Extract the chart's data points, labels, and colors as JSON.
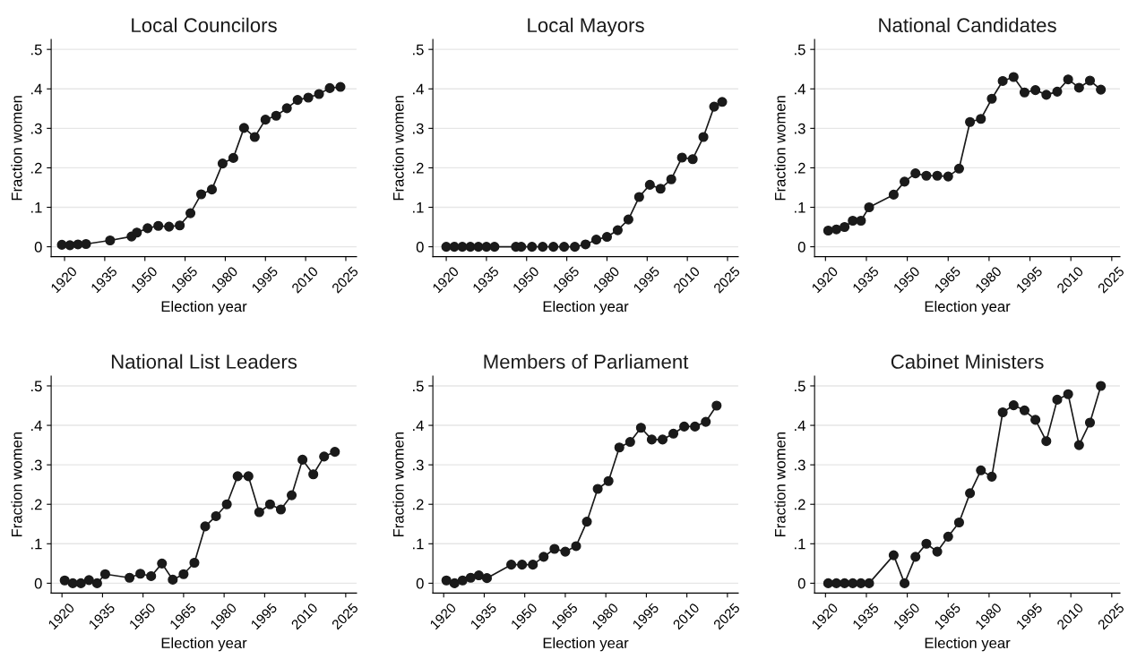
{
  "chart_data": [
    {
      "type": "line",
      "title": "Local Councilors",
      "xlabel": "Election year",
      "ylabel": "Fraction women",
      "marker": "circle",
      "line_style": "solid",
      "grid": "y",
      "xlim": [
        1915,
        2029
      ],
      "ylim": [
        -0.025,
        0.525
      ],
      "xticks": [
        1920,
        1935,
        1950,
        1965,
        1980,
        1995,
        2010,
        2025
      ],
      "yticks": [
        {
          "value": 0,
          "label": "0"
        },
        {
          "value": 0.1,
          "label": ".1"
        },
        {
          "value": 0.2,
          "label": ".2"
        },
        {
          "value": 0.3,
          "label": ".3"
        },
        {
          "value": 0.4,
          "label": ".4"
        },
        {
          "value": 0.5,
          "label": ".5"
        }
      ],
      "series": [
        {
          "color": "#1a1a1a",
          "x": [
            1919,
            1922,
            1925,
            1928,
            1937,
            1945,
            1947,
            1951,
            1955,
            1959,
            1963,
            1967,
            1971,
            1975,
            1979,
            1983,
            1987,
            1991,
            1995,
            1999,
            2003,
            2007,
            2011,
            2015,
            2019,
            2023
          ],
          "values": [
            0.005,
            0.004,
            0.006,
            0.007,
            0.016,
            0.026,
            0.036,
            0.047,
            0.053,
            0.051,
            0.054,
            0.085,
            0.133,
            0.145,
            0.211,
            0.225,
            0.301,
            0.278,
            0.322,
            0.332,
            0.351,
            0.372,
            0.378,
            0.387,
            0.402,
            0.405
          ]
        }
      ]
    },
    {
      "type": "line",
      "title": "Local Mayors",
      "xlabel": "Election year",
      "ylabel": "Fraction women",
      "marker": "circle",
      "line_style": "solid",
      "grid": "y",
      "xlim": [
        1915,
        2029
      ],
      "ylim": [
        -0.025,
        0.525
      ],
      "xticks": [
        1920,
        1935,
        1950,
        1965,
        1980,
        1995,
        2010,
        2025
      ],
      "yticks": [
        {
          "value": 0,
          "label": "0"
        },
        {
          "value": 0.1,
          "label": ".1"
        },
        {
          "value": 0.2,
          "label": ".2"
        },
        {
          "value": 0.3,
          "label": ".3"
        },
        {
          "value": 0.4,
          "label": ".4"
        },
        {
          "value": 0.5,
          "label": ".5"
        }
      ],
      "series": [
        {
          "color": "#1a1a1a",
          "x": [
            1920,
            1923,
            1926,
            1929,
            1932,
            1935,
            1938,
            1946,
            1948,
            1952,
            1956,
            1960,
            1964,
            1968,
            1972,
            1976,
            1980,
            1984,
            1988,
            1992,
            1996,
            2000,
            2004,
            2008,
            2012,
            2016,
            2020,
            2023
          ],
          "values": [
            0,
            0,
            0,
            0,
            0,
            0,
            0,
            0,
            0,
            0,
            0,
            0,
            0,
            0,
            0.006,
            0.018,
            0.025,
            0.042,
            0.069,
            0.126,
            0.157,
            0.147,
            0.171,
            0.226,
            0.222,
            0.278,
            0.355,
            0.367
          ]
        }
      ]
    },
    {
      "type": "line",
      "title": "National Candidates",
      "xlabel": "Election year",
      "ylabel": "Fraction women",
      "marker": "circle",
      "line_style": "solid",
      "grid": "y",
      "xlim": [
        1916,
        2028
      ],
      "ylim": [
        -0.025,
        0.525
      ],
      "xticks": [
        1920,
        1935,
        1950,
        1965,
        1980,
        1995,
        2010,
        2025
      ],
      "yticks": [
        {
          "value": 0,
          "label": "0"
        },
        {
          "value": 0.1,
          "label": ".1"
        },
        {
          "value": 0.2,
          "label": ".2"
        },
        {
          "value": 0.3,
          "label": ".3"
        },
        {
          "value": 0.4,
          "label": ".4"
        },
        {
          "value": 0.5,
          "label": ".5"
        }
      ],
      "series": [
        {
          "color": "#1a1a1a",
          "x": [
            1921,
            1924,
            1927,
            1930,
            1933,
            1936,
            1945,
            1949,
            1953,
            1957,
            1961,
            1965,
            1969,
            1973,
            1977,
            1981,
            1985,
            1989,
            1993,
            1997,
            2001,
            2005,
            2009,
            2013,
            2017,
            2021
          ],
          "values": [
            0.041,
            0.044,
            0.05,
            0.066,
            0.066,
            0.1,
            0.132,
            0.165,
            0.186,
            0.18,
            0.18,
            0.178,
            0.198,
            0.316,
            0.324,
            0.375,
            0.42,
            0.43,
            0.391,
            0.397,
            0.385,
            0.393,
            0.424,
            0.403,
            0.421,
            0.398
          ]
        }
      ]
    },
    {
      "type": "line",
      "title": "National List Leaders",
      "xlabel": "Election year",
      "ylabel": "Fraction women",
      "marker": "circle",
      "line_style": "solid",
      "grid": "y",
      "xlim": [
        1916,
        2029
      ],
      "ylim": [
        -0.025,
        0.525
      ],
      "xticks": [
        1920,
        1935,
        1950,
        1965,
        1980,
        1995,
        2010,
        2025
      ],
      "yticks": [
        {
          "value": 0,
          "label": "0"
        },
        {
          "value": 0.1,
          "label": ".1"
        },
        {
          "value": 0.2,
          "label": ".2"
        },
        {
          "value": 0.3,
          "label": ".3"
        },
        {
          "value": 0.4,
          "label": ".4"
        },
        {
          "value": 0.5,
          "label": ".5"
        }
      ],
      "series": [
        {
          "color": "#1a1a1a",
          "x": [
            1921,
            1924,
            1927,
            1930,
            1933,
            1936,
            1945,
            1949,
            1953,
            1957,
            1961,
            1965,
            1969,
            1973,
            1977,
            1981,
            1985,
            1989,
            1993,
            1997,
            2001,
            2005,
            2009,
            2013,
            2017,
            2021
          ],
          "values": [
            0.007,
            0,
            0,
            0.008,
            0,
            0.023,
            0.014,
            0.024,
            0.018,
            0.05,
            0.009,
            0.023,
            0.052,
            0.144,
            0.17,
            0.2,
            0.271,
            0.271,
            0.18,
            0.2,
            0.187,
            0.223,
            0.313,
            0.276,
            0.321,
            0.333
          ]
        }
      ]
    },
    {
      "type": "line",
      "title": "Members of Parliament",
      "xlabel": "Election year",
      "ylabel": "Fraction women",
      "marker": "circle",
      "line_style": "solid",
      "grid": "y",
      "xlim": [
        1916,
        2029
      ],
      "ylim": [
        -0.025,
        0.525
      ],
      "xticks": [
        1920,
        1935,
        1950,
        1965,
        1980,
        1995,
        2010,
        2025
      ],
      "yticks": [
        {
          "value": 0,
          "label": "0"
        },
        {
          "value": 0.1,
          "label": ".1"
        },
        {
          "value": 0.2,
          "label": ".2"
        },
        {
          "value": 0.3,
          "label": ".3"
        },
        {
          "value": 0.4,
          "label": ".4"
        },
        {
          "value": 0.5,
          "label": ".5"
        }
      ],
      "series": [
        {
          "color": "#1a1a1a",
          "x": [
            1921,
            1924,
            1927,
            1930,
            1933,
            1936,
            1945,
            1949,
            1953,
            1957,
            1961,
            1965,
            1969,
            1973,
            1977,
            1981,
            1985,
            1989,
            1993,
            1997,
            2001,
            2005,
            2009,
            2013,
            2017,
            2021
          ],
          "values": [
            0.007,
            0,
            0.007,
            0.014,
            0.02,
            0.013,
            0.047,
            0.047,
            0.047,
            0.067,
            0.087,
            0.08,
            0.094,
            0.156,
            0.239,
            0.259,
            0.344,
            0.358,
            0.394,
            0.364,
            0.364,
            0.379,
            0.397,
            0.397,
            0.409,
            0.45
          ]
        }
      ]
    },
    {
      "type": "line",
      "title": "Cabinet Ministers",
      "xlabel": "Election year",
      "ylabel": "Fraction women",
      "marker": "circle",
      "line_style": "solid",
      "grid": "y",
      "xlim": [
        1916,
        2028
      ],
      "ylim": [
        -0.025,
        0.525
      ],
      "xticks": [
        1920,
        1935,
        1950,
        1965,
        1980,
        1995,
        2010,
        2025
      ],
      "yticks": [
        {
          "value": 0,
          "label": "0"
        },
        {
          "value": 0.1,
          "label": ".1"
        },
        {
          "value": 0.2,
          "label": ".2"
        },
        {
          "value": 0.3,
          "label": ".3"
        },
        {
          "value": 0.4,
          "label": ".4"
        },
        {
          "value": 0.5,
          "label": ".5"
        }
      ],
      "series": [
        {
          "color": "#1a1a1a",
          "x": [
            1921,
            1924,
            1927,
            1930,
            1933,
            1936,
            1945,
            1949,
            1953,
            1957,
            1961,
            1965,
            1969,
            1973,
            1977,
            1981,
            1985,
            1989,
            1993,
            1997,
            2001,
            2005,
            2009,
            2013,
            2017,
            2021
          ],
          "values": [
            0,
            0,
            0,
            0,
            0,
            0,
            0.071,
            0,
            0.067,
            0.1,
            0.08,
            0.118,
            0.154,
            0.228,
            0.286,
            0.27,
            0.433,
            0.451,
            0.438,
            0.414,
            0.36,
            0.465,
            0.479,
            0.35,
            0.407,
            0.5
          ]
        }
      ]
    }
  ]
}
